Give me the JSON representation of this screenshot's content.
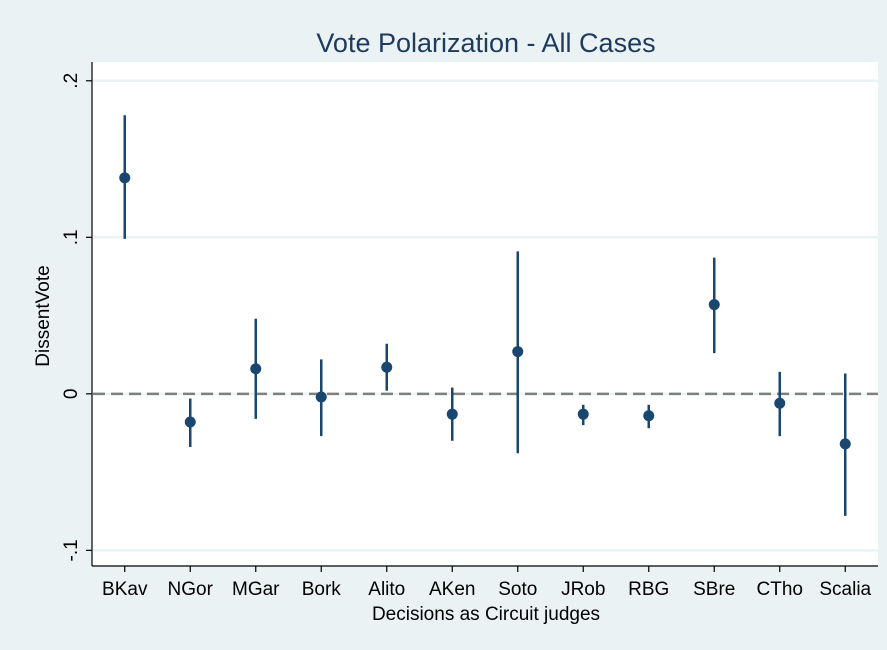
{
  "chart_data": {
    "type": "ci_dot",
    "title": "Vote Polarization - All Cases",
    "xlabel": "Decisions as Circuit judges",
    "ylabel": "DissentVote",
    "categories": [
      "BKav",
      "NGor",
      "MGar",
      "Bork",
      "Alito",
      "AKen",
      "Soto",
      "JRob",
      "RBG",
      "SBre",
      "CTho",
      "Scalia"
    ],
    "series": [
      {
        "color": "#1a476f",
        "values": [
          0.138,
          -0.018,
          0.016,
          -0.002,
          0.017,
          -0.013,
          0.027,
          -0.013,
          -0.014,
          0.057,
          -0.006,
          -0.032
        ],
        "low": [
          0.099,
          -0.034,
          -0.016,
          -0.027,
          0.002,
          -0.03,
          -0.038,
          -0.02,
          -0.022,
          0.026,
          -0.027,
          -0.078
        ],
        "high": [
          0.178,
          -0.003,
          0.048,
          0.022,
          0.032,
          0.004,
          0.091,
          -0.007,
          -0.007,
          0.087,
          0.014,
          0.013
        ]
      }
    ],
    "ylim": [
      -0.11,
      0.212
    ],
    "yticks": [
      {
        "value": -0.1,
        "label": "-.1"
      },
      0,
      {
        "value": 0.1,
        "label": ".1"
      },
      {
        "value": 0.2,
        "label": ".2"
      }
    ],
    "reference_line": 0,
    "grid": true
  }
}
